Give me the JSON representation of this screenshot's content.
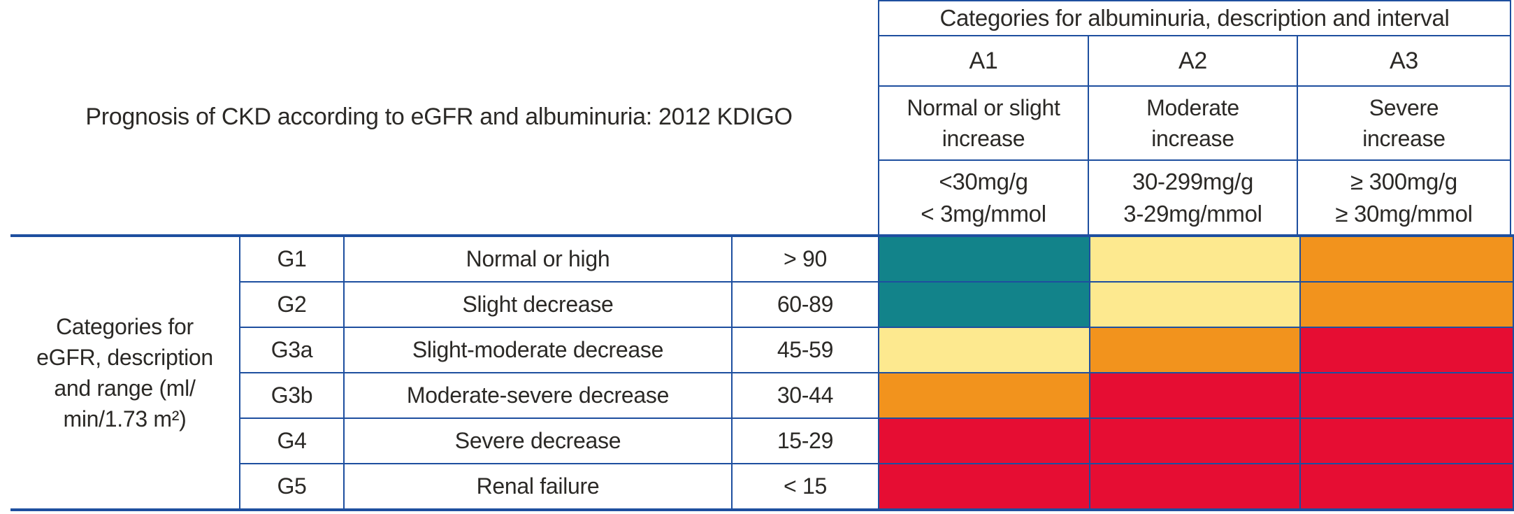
{
  "chart_data": {
    "type": "heatmap",
    "title": "Prognosis of CKD according to eGFR and albuminuria: 2012 KDIGO",
    "albuminuria_header": "Categories for albuminuria, description and interval",
    "albuminuria_columns": [
      {
        "code": "A1",
        "description": "Normal or slight\nincrease",
        "interval": "<30mg/g\n< 3mg/mmol"
      },
      {
        "code": "A2",
        "description": "Moderate\nincrease",
        "interval": "30-299mg/g\n3-29mg/mmol"
      },
      {
        "code": "A3",
        "description": "Severe\nincrease",
        "interval": "≥ 300mg/g\n≥ 30mg/mmol"
      }
    ],
    "egfr_axis_label": "Categories for\neGFR, description\nand range (ml/\nmin/1.73 m²)",
    "egfr_rows": [
      {
        "code": "G1",
        "description": "Normal or high",
        "range": "> 90",
        "cells": [
          "low",
          "moderate",
          "high"
        ]
      },
      {
        "code": "G2",
        "description": "Slight decrease",
        "range": "60-89",
        "cells": [
          "low",
          "moderate",
          "high"
        ]
      },
      {
        "code": "G3a",
        "description": "Slight-moderate decrease",
        "range": "45-59",
        "cells": [
          "moderate",
          "high",
          "very_high"
        ]
      },
      {
        "code": "G3b",
        "description": "Moderate-severe decrease",
        "range": "30-44",
        "cells": [
          "high",
          "very_high",
          "very_high"
        ]
      },
      {
        "code": "G4",
        "description": "Severe decrease",
        "range": "15-29",
        "cells": [
          "very_high",
          "very_high",
          "very_high"
        ]
      },
      {
        "code": "G5",
        "description": "Renal failure",
        "range": "< 15",
        "cells": [
          "very_high",
          "very_high",
          "very_high"
        ]
      }
    ],
    "risk_colors": {
      "low": "#12838a",
      "moderate": "#fde98f",
      "high": "#f2931d",
      "very_high": "#e60d33"
    },
    "border_color": "#1e4f9f",
    "text_color": "#2b2926"
  }
}
